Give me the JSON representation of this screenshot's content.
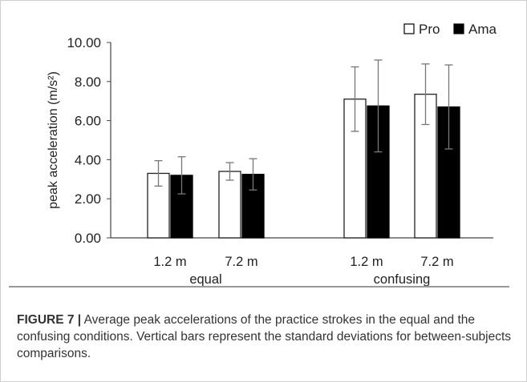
{
  "chart_data": {
    "type": "bar",
    "ylabel": "peak acceleration (m/s²)",
    "ylim": [
      0,
      10
    ],
    "yticks": [
      "0.00",
      "2.00",
      "4.00",
      "6.00",
      "8.00",
      "10.00"
    ],
    "grid": false,
    "legend_placement": "top-right",
    "groups": [
      {
        "name": "equal",
        "categories": [
          "1.2 m",
          "7.2 m"
        ]
      },
      {
        "name": "confusing",
        "categories": [
          "1.2 m",
          "7.2 m"
        ]
      }
    ],
    "series": [
      {
        "name": "Pro",
        "color": "#ffffff",
        "values": [
          3.3,
          3.4,
          7.1,
          7.35
        ],
        "errors": [
          0.65,
          0.45,
          1.65,
          1.55
        ]
      },
      {
        "name": "Ama",
        "color": "#000000",
        "values": [
          3.2,
          3.25,
          6.75,
          6.7
        ],
        "errors": [
          0.95,
          0.8,
          2.35,
          2.15
        ]
      }
    ]
  },
  "caption": {
    "label": "FIGURE 7 |",
    "text": " Average peak accelerations of the practice strokes in the equal and the confusing conditions. Vertical bars represent the standard deviations for between-subjects comparisons."
  }
}
